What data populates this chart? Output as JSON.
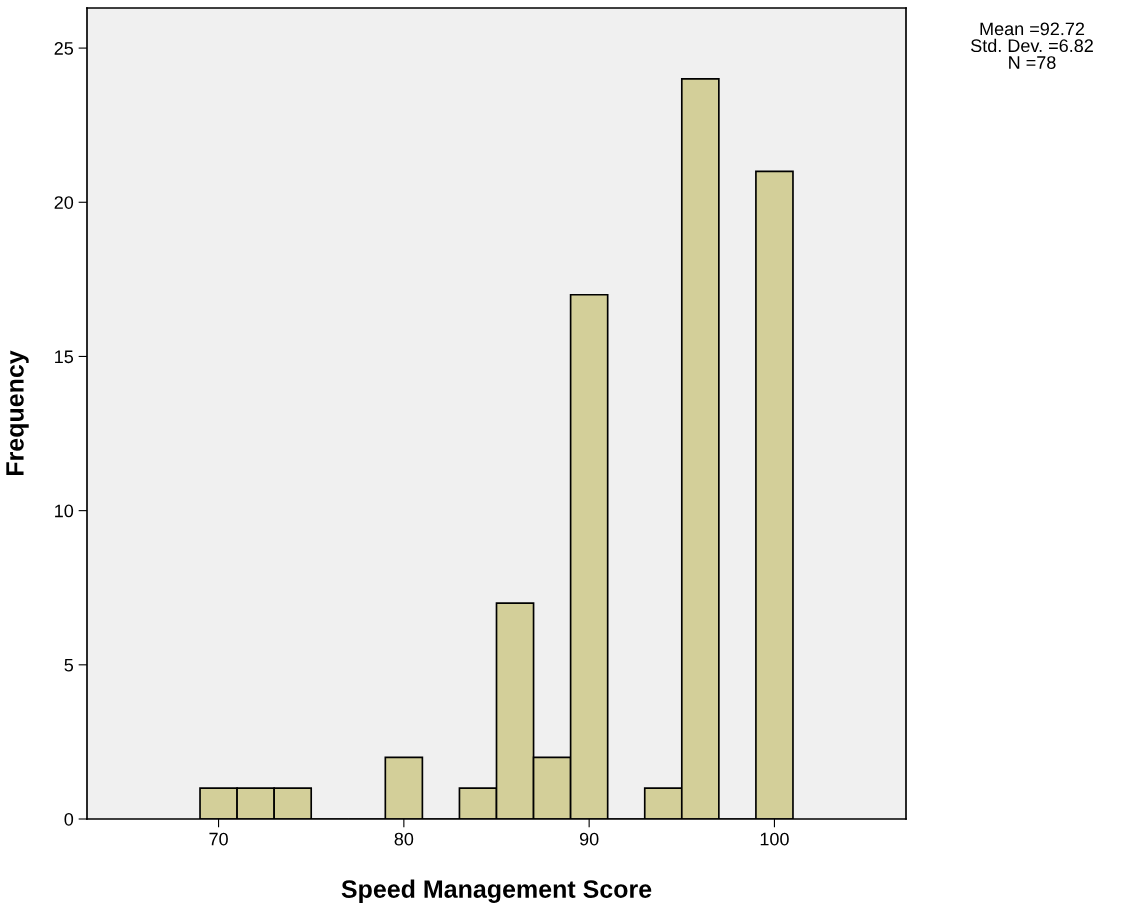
{
  "chart_data": {
    "type": "histogram",
    "xlabel": "Speed Management Score",
    "ylabel": "Frequency",
    "bins": [
      69,
      71,
      73,
      75,
      77,
      79,
      81,
      83,
      85,
      87,
      89,
      91,
      93,
      95,
      97,
      99,
      101
    ],
    "values": [
      1,
      1,
      1,
      0,
      0,
      2,
      0,
      1,
      7,
      2,
      17,
      0,
      1,
      24,
      0,
      21
    ],
    "color": "#d3cf99",
    "xlim": [
      62.9,
      107.1
    ],
    "xticks": [
      70,
      80,
      90,
      100
    ],
    "ylim": [
      0,
      26.3
    ],
    "yticks": [
      0,
      5,
      10,
      15,
      20,
      25
    ],
    "grid": false,
    "legend": false,
    "annotations": [
      "Mean =92.72\nStd. Dev. =6.82\nN =78"
    ]
  }
}
